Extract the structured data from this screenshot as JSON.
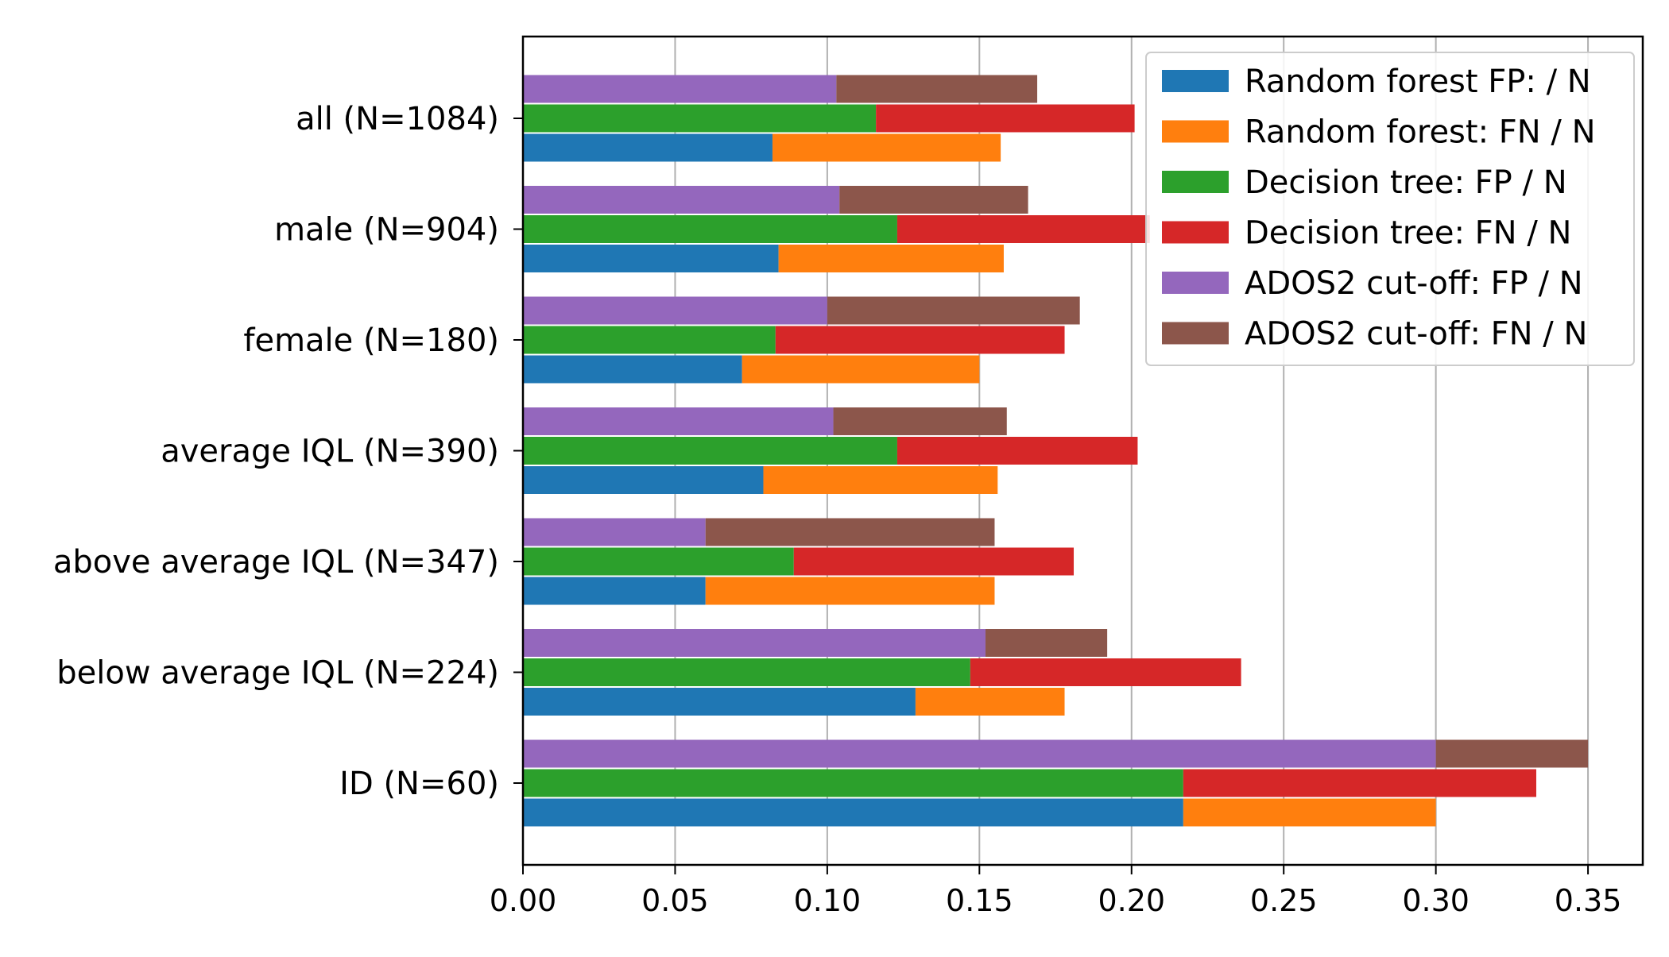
{
  "chart_data": {
    "type": "bar",
    "orientation": "horizontal",
    "stacked_pairs": true,
    "categories": [
      "all (N=1084)",
      "male (N=904)",
      "female (N=180)",
      "average IQL (N=390)",
      "above average IQL (N=347)",
      "below average IQL (N=224)",
      "ID (N=60)"
    ],
    "series": [
      {
        "name": "Random forest FP: / N",
        "color": "#1f77b4",
        "values": [
          0.082,
          0.084,
          0.072,
          0.079,
          0.06,
          0.129,
          0.217
        ]
      },
      {
        "name": "Random forest: FN / N",
        "color": "#ff7f0e",
        "values": [
          0.075,
          0.074,
          0.078,
          0.077,
          0.095,
          0.049,
          0.083
        ]
      },
      {
        "name": "Decision tree: FP / N",
        "color": "#2ca02c",
        "values": [
          0.116,
          0.123,
          0.083,
          0.123,
          0.089,
          0.147,
          0.217
        ]
      },
      {
        "name": "Decision tree: FN / N",
        "color": "#d62728",
        "values": [
          0.085,
          0.083,
          0.095,
          0.079,
          0.092,
          0.089,
          0.116
        ]
      },
      {
        "name": "ADOS2 cut-off: FP / N",
        "color": "#9467bd",
        "values": [
          0.103,
          0.104,
          0.1,
          0.102,
          0.06,
          0.152,
          0.3
        ]
      },
      {
        "name": "ADOS2 cut-off: FN / N",
        "color": "#8c564b",
        "values": [
          0.066,
          0.062,
          0.083,
          0.057,
          0.095,
          0.04,
          0.05
        ]
      }
    ],
    "xticks": [
      "0.00",
      "0.05",
      "0.10",
      "0.15",
      "0.20",
      "0.25",
      "0.30",
      "0.35"
    ],
    "xlim": [
      0,
      0.368
    ],
    "grid": "vertical",
    "legend_position": "top-right",
    "title": "",
    "xlabel": "",
    "ylabel": ""
  }
}
